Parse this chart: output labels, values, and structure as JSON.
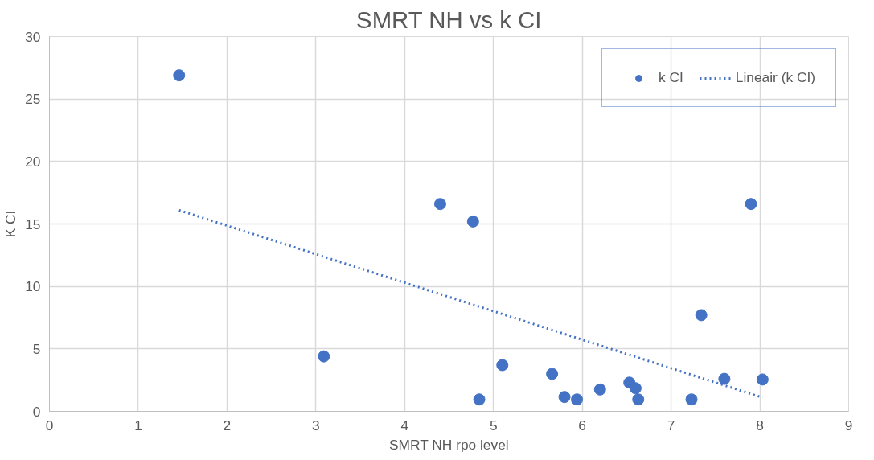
{
  "chart_data": {
    "type": "scatter",
    "title": "SMRT NH vs k CI",
    "xlabel": "SMRT NH rpo level",
    "ylabel": "K CI",
    "xlim": [
      0,
      9
    ],
    "xticks": [
      0,
      1,
      2,
      3,
      4,
      5,
      6,
      7,
      8,
      9
    ],
    "ylim": [
      0,
      30
    ],
    "yticks": [
      0,
      5,
      10,
      15,
      20,
      25,
      30
    ],
    "grid": true,
    "legend": "top right",
    "marker": "circle",
    "series": [
      {
        "name": "k CI",
        "color": "#4472c4",
        "x": [
          1.46,
          3.09,
          4.4,
          4.77,
          4.84,
          5.1,
          5.66,
          5.8,
          5.94,
          6.2,
          6.53,
          6.6,
          6.63,
          7.23,
          7.34,
          7.6,
          7.9,
          8.03
        ],
        "values": [
          26.9,
          4.4,
          16.6,
          15.2,
          0.95,
          3.7,
          3.0,
          1.15,
          0.95,
          1.75,
          2.3,
          1.85,
          0.95,
          0.95,
          7.7,
          2.6,
          16.6,
          2.55
        ]
      },
      {
        "name": "Lineair (k CI)",
        "color": "#4472c4",
        "type": "line",
        "line_style": "dotted",
        "marker": "none",
        "x": [
          1.46,
          8.03
        ],
        "values": [
          16.1,
          1.1
        ]
      }
    ]
  }
}
